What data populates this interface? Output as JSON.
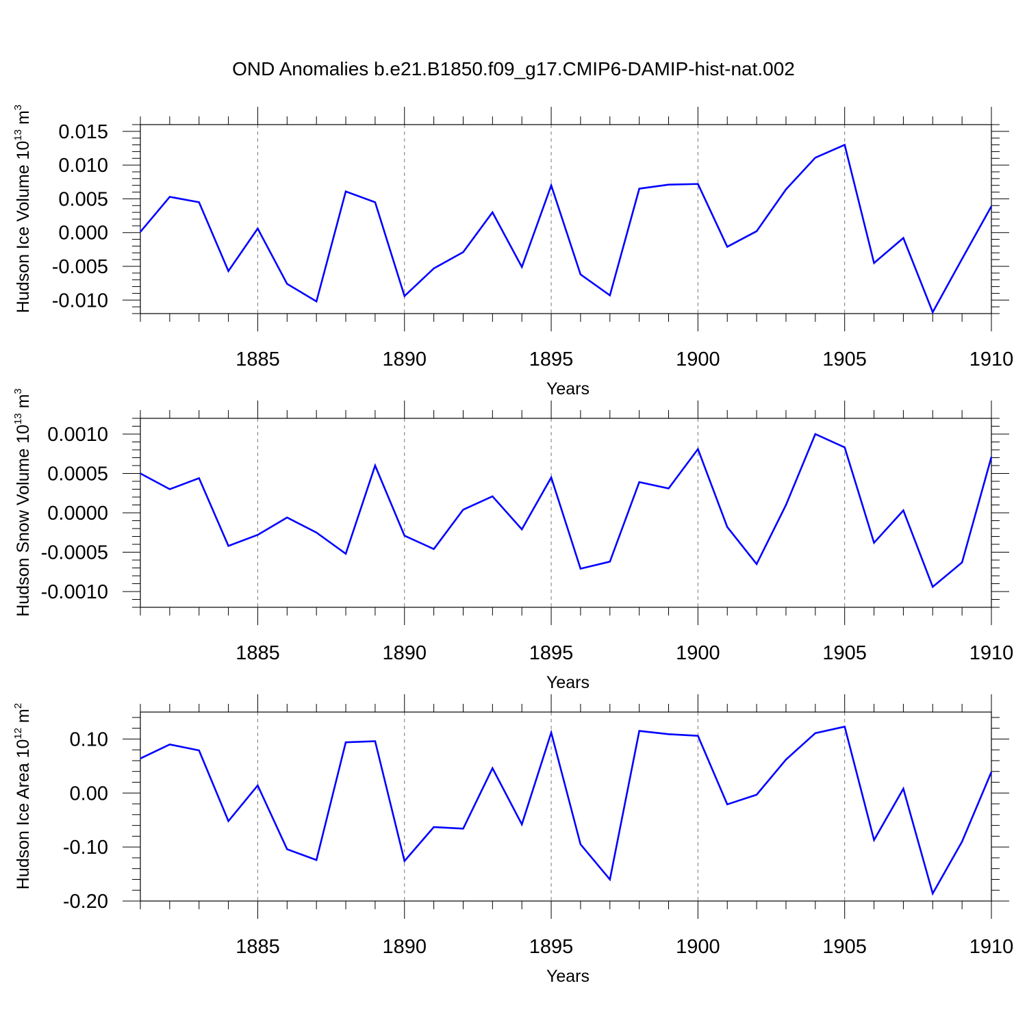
{
  "title": "OND Anomalies b.e21.B1850.f09_g17.CMIP6-DAMIP-hist-nat.002",
  "line_color": "#0000ff",
  "chart_data": [
    {
      "type": "line",
      "ylabel": {
        "text": "Hudson Ice Volume 10",
        "exp": "13",
        "unit": "m",
        "unit_exp": "3"
      },
      "xlabel": "Years",
      "xlim": [
        1881,
        1910
      ],
      "ylim": [
        -0.012,
        0.016
      ],
      "yticks": [
        -0.01,
        -0.005,
        0.0,
        0.005,
        0.01,
        0.015
      ],
      "ytick_labels": [
        "-0.010",
        "-0.005",
        "0.000",
        "0.005",
        "0.010",
        "0.015"
      ],
      "xticks": [
        1885,
        1890,
        1895,
        1900,
        1905,
        1910
      ],
      "xtick_labels": [
        "1885",
        "1890",
        "1895",
        "1900",
        "1905",
        "1910"
      ],
      "x": [
        1881,
        1882,
        1883,
        1884,
        1885,
        1886,
        1887,
        1888,
        1889,
        1890,
        1891,
        1892,
        1893,
        1894,
        1895,
        1896,
        1897,
        1898,
        1899,
        1900,
        1901,
        1902,
        1903,
        1904,
        1905,
        1906,
        1907,
        1908,
        1909,
        1910
      ],
      "values": [
        0.0001,
        0.0053,
        0.0045,
        -0.0057,
        0.0006,
        -0.0076,
        -0.0102,
        0.0061,
        0.0045,
        -0.0094,
        -0.0053,
        -0.0029,
        0.003,
        -0.0051,
        0.007,
        -0.0062,
        -0.0093,
        0.0065,
        0.0071,
        0.0072,
        -0.0021,
        0.0002,
        0.0064,
        0.0111,
        0.013,
        -0.0045,
        -0.0008,
        -0.0118,
        -0.0039,
        0.0039
      ]
    },
    {
      "type": "line",
      "ylabel": {
        "text": "Hudson Snow Volume 10",
        "exp": "13",
        "unit": "m",
        "unit_exp": "3"
      },
      "xlabel": "Years",
      "xlim": [
        1881,
        1910
      ],
      "ylim": [
        -0.0012,
        0.0012
      ],
      "yticks": [
        -0.001,
        -0.0005,
        0.0,
        0.0005,
        0.001
      ],
      "ytick_labels": [
        "-0.0010",
        "-0.0005",
        "0.0000",
        "0.0005",
        "0.0010"
      ],
      "xticks": [
        1885,
        1890,
        1895,
        1900,
        1905,
        1910
      ],
      "xtick_labels": [
        "1885",
        "1890",
        "1895",
        "1900",
        "1905",
        "1910"
      ],
      "x": [
        1881,
        1882,
        1883,
        1884,
        1885,
        1886,
        1887,
        1888,
        1889,
        1890,
        1891,
        1892,
        1893,
        1894,
        1895,
        1896,
        1897,
        1898,
        1899,
        1900,
        1901,
        1902,
        1903,
        1904,
        1905,
        1906,
        1907,
        1908,
        1909,
        1910
      ],
      "values": [
        0.0005,
        0.0003,
        0.00044,
        -0.00042,
        -0.00028,
        -6e-05,
        -0.00025,
        -0.00052,
        0.0006,
        -0.00029,
        -0.00046,
        4e-05,
        0.00021,
        -0.00021,
        0.00045,
        -0.00071,
        -0.00062,
        0.00039,
        0.00031,
        0.00081,
        -0.00018,
        -0.00065,
        0.0001,
        0.001,
        0.00083,
        -0.00038,
        3e-05,
        -0.00094,
        -0.00063,
        0.00071
      ]
    },
    {
      "type": "line",
      "ylabel": {
        "text": "Hudson Ice Area 10",
        "exp": "12",
        "unit": "m",
        "unit_exp": "2"
      },
      "xlabel": "Years",
      "xlim": [
        1881,
        1910
      ],
      "ylim": [
        -0.2,
        0.15
      ],
      "yticks": [
        -0.2,
        -0.1,
        0.0,
        0.1
      ],
      "ytick_labels": [
        "-0.20",
        "-0.10",
        "0.00",
        "0.10"
      ],
      "xticks": [
        1885,
        1890,
        1895,
        1900,
        1905,
        1910
      ],
      "xtick_labels": [
        "1885",
        "1890",
        "1895",
        "1900",
        "1905",
        "1910"
      ],
      "x": [
        1881,
        1882,
        1883,
        1884,
        1885,
        1886,
        1887,
        1888,
        1889,
        1890,
        1891,
        1892,
        1893,
        1894,
        1895,
        1896,
        1897,
        1898,
        1899,
        1900,
        1901,
        1902,
        1903,
        1904,
        1905,
        1906,
        1907,
        1908,
        1909,
        1910
      ],
      "values": [
        0.064,
        0.09,
        0.079,
        -0.052,
        0.014,
        -0.104,
        -0.124,
        0.094,
        0.096,
        -0.126,
        -0.063,
        -0.066,
        0.046,
        -0.058,
        0.112,
        -0.095,
        -0.16,
        0.115,
        0.109,
        0.106,
        -0.021,
        -0.003,
        0.062,
        0.111,
        0.123,
        -0.087,
        0.008,
        -0.186,
        -0.09,
        0.039
      ]
    }
  ]
}
